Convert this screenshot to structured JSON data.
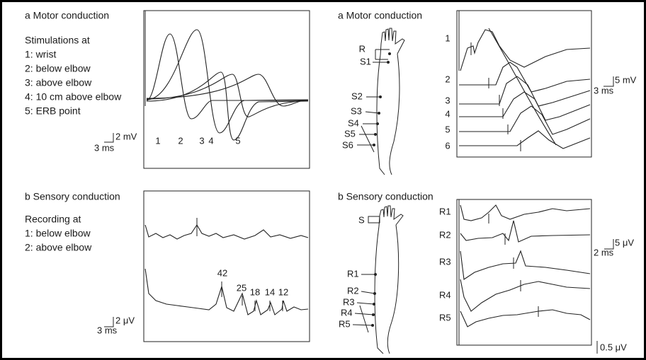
{
  "panels": [
    {
      "title": "a  Motor conduction",
      "heading": "Stimulations at",
      "items": [
        "1: wrist",
        "2: below elbow",
        "3: above elbow",
        "4: 10 cm above elbow",
        "5: ERB point"
      ],
      "trace_labels": [
        "1",
        "2",
        "3",
        "4",
        "5"
      ],
      "scale_y": "2 mV",
      "scale_x": "3 ms"
    },
    {
      "title": "a  Motor conduction",
      "site_labels": [
        "R",
        "S1",
        "S2",
        "S3",
        "S4",
        "S5",
        "S6"
      ],
      "trace_labels": [
        "1",
        "2",
        "3",
        "4",
        "5",
        "6"
      ],
      "scale_y": "5 mV",
      "scale_x": "3 ms"
    },
    {
      "title": "b  Sensory conduction",
      "heading": "Recording at",
      "items": [
        "1: below elbow",
        "2: above elbow"
      ],
      "peak_labels": [
        "42",
        "25",
        "18",
        "14",
        "12"
      ],
      "scale_y": "2 μV",
      "scale_x": "3 ms"
    },
    {
      "title": "b  Sensory conduction",
      "site_labels": [
        "S",
        "R1",
        "R2",
        "R3",
        "R4",
        "R5"
      ],
      "trace_labels": [
        "R1",
        "R2",
        "R3",
        "R4",
        "R5"
      ],
      "scale_y": "5 μV",
      "scale_x": "2 ms",
      "scale_y2": "0.5 μV"
    }
  ]
}
